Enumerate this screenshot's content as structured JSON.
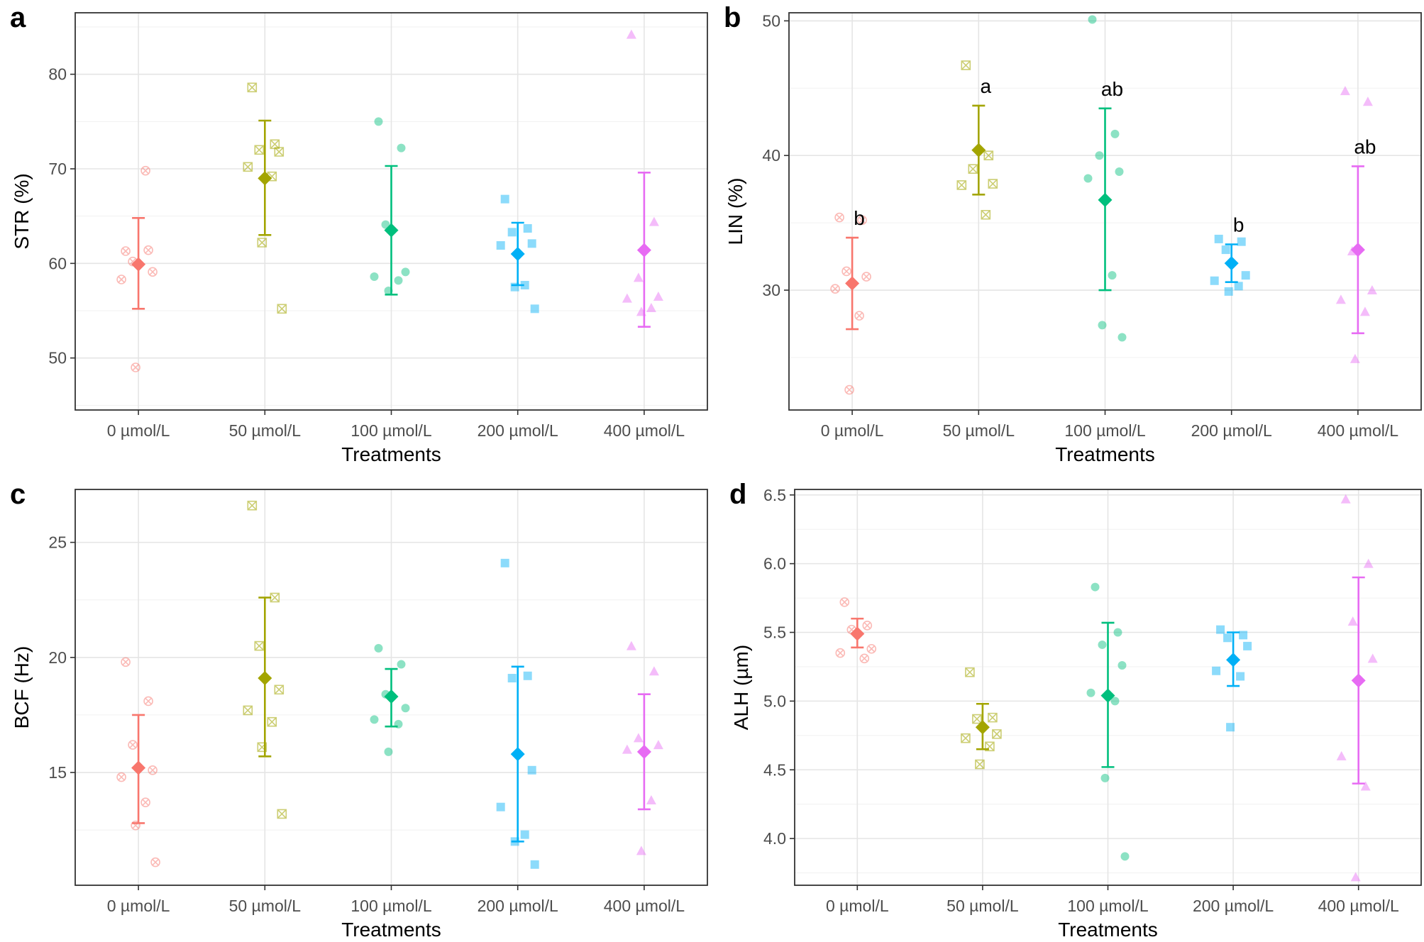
{
  "figure": {
    "colors": [
      "#f8766d",
      "#a3a500",
      "#00bf7d",
      "#00b0f6",
      "#e76bf3"
    ],
    "point_shapes": [
      "x-circle",
      "x-square",
      "circle",
      "square",
      "triangle"
    ]
  },
  "chart_data": [
    {
      "panel": "a",
      "type": "scatter",
      "title": "",
      "xlabel": "Treatments",
      "ylabel": "STR (%)",
      "ylim": [
        44.5,
        86.5
      ],
      "yticks": [
        50,
        60,
        70,
        80
      ],
      "ytick_labels": [
        "50",
        "60",
        "70",
        "80"
      ],
      "categories": [
        "0 µmol/L",
        "50 µmol/L",
        "100 µmol/L",
        "200 µmol/L",
        "400 µmol/L"
      ],
      "means": [
        59.9,
        69.0,
        63.5,
        61.0,
        61.4
      ],
      "error_low": [
        55.2,
        63.0,
        56.7,
        57.7,
        53.3
      ],
      "error_high": [
        64.8,
        75.1,
        70.3,
        64.3,
        69.6
      ],
      "significance_letters": [
        "",
        "",
        "",
        "",
        ""
      ],
      "points": [
        [
          61.3,
          61.4,
          60.2,
          59.1,
          58.3,
          69.8,
          49.0
        ],
        [
          78.6,
          72.6,
          72.0,
          71.8,
          70.2,
          69.2,
          62.2,
          55.2
        ],
        [
          75.0,
          72.2,
          64.1,
          59.1,
          58.6,
          58.2,
          57.1
        ],
        [
          66.8,
          63.7,
          63.3,
          62.1,
          61.9,
          57.7,
          57.5,
          55.2
        ],
        [
          84.2,
          64.4,
          58.5,
          56.5,
          56.3,
          55.3,
          54.9
        ]
      ]
    },
    {
      "panel": "b",
      "type": "scatter",
      "title": "",
      "xlabel": "Treatments",
      "ylabel": "LIN (%)",
      "ylim": [
        21.1,
        50.6
      ],
      "yticks": [
        30,
        40,
        50
      ],
      "ytick_labels": [
        "30",
        "40",
        "50"
      ],
      "categories": [
        "0 µmol/L",
        "50 µmol/L",
        "100 µmol/L",
        "200 µmol/L",
        "400 µmol/L"
      ],
      "means": [
        30.5,
        40.4,
        36.7,
        32.0,
        33.0
      ],
      "error_low": [
        27.1,
        37.1,
        30.0,
        30.6,
        26.8
      ],
      "error_high": [
        33.9,
        43.7,
        43.5,
        33.4,
        39.2
      ],
      "significance_letters": [
        "b",
        "a",
        "ab",
        "b",
        "ab"
      ],
      "points": [
        [
          35.4,
          35.2,
          31.4,
          31.0,
          30.1,
          28.1,
          22.6
        ],
        [
          46.7,
          40.0,
          39.0,
          37.9,
          37.8,
          35.6
        ],
        [
          50.1,
          41.6,
          40.0,
          38.8,
          38.3,
          31.1,
          27.4,
          26.5
        ],
        [
          33.8,
          33.6,
          33.0,
          31.1,
          30.7,
          30.3,
          29.9
        ],
        [
          44.8,
          44.0,
          32.9,
          30.0,
          29.3,
          28.4,
          24.9
        ]
      ]
    },
    {
      "panel": "c",
      "type": "scatter",
      "title": "",
      "xlabel": "Treatments",
      "ylabel": "BCF (Hz)",
      "ylim": [
        10.1,
        27.3
      ],
      "yticks": [
        15,
        20,
        25
      ],
      "ytick_labels": [
        "15",
        "20",
        "25"
      ],
      "categories": [
        "0 µmol/L",
        "50 µmol/L",
        "100 µmol/L",
        "200 µmol/L",
        "400 µmol/L"
      ],
      "means": [
        15.2,
        19.1,
        18.3,
        15.8,
        15.9
      ],
      "error_low": [
        12.8,
        15.7,
        17.0,
        12.0,
        13.4
      ],
      "error_high": [
        17.5,
        22.6,
        19.5,
        19.6,
        18.4
      ],
      "significance_letters": [
        "",
        "",
        "",
        "",
        ""
      ],
      "points": [
        [
          19.8,
          18.1,
          16.2,
          15.1,
          14.8,
          13.7,
          12.7,
          11.1
        ],
        [
          26.6,
          22.6,
          20.5,
          18.6,
          17.7,
          17.2,
          16.1,
          13.2
        ],
        [
          20.4,
          19.7,
          18.4,
          17.8,
          17.3,
          17.1,
          15.9
        ],
        [
          24.1,
          19.2,
          19.1,
          15.1,
          13.5,
          12.3,
          12.0,
          11.0
        ],
        [
          20.5,
          19.4,
          16.5,
          16.2,
          16.0,
          13.8,
          11.6
        ]
      ]
    },
    {
      "panel": "d",
      "type": "scatter",
      "title": "",
      "xlabel": "Treatments",
      "ylabel": "ALH (µm)",
      "ylim": [
        3.66,
        6.54
      ],
      "yticks": [
        4.0,
        4.5,
        5.0,
        5.5,
        6.0,
        6.5
      ],
      "ytick_labels": [
        "4.0",
        "4.5",
        "5.0",
        "5.5",
        "6.0",
        "6.5"
      ],
      "categories": [
        "0 µmol/L",
        "50 µmol/L",
        "100 µmol/L",
        "200 µmol/L",
        "400 µmol/L"
      ],
      "means": [
        5.49,
        4.81,
        5.04,
        5.3,
        5.15
      ],
      "error_low": [
        5.39,
        4.65,
        4.52,
        5.11,
        4.4
      ],
      "error_high": [
        5.6,
        4.98,
        5.57,
        5.5,
        5.9
      ],
      "significance_letters": [
        "",
        "",
        "",
        "",
        ""
      ],
      "points": [
        [
          5.72,
          5.55,
          5.52,
          5.38,
          5.35,
          5.31
        ],
        [
          5.21,
          4.88,
          4.87,
          4.76,
          4.73,
          4.67,
          4.54
        ],
        [
          5.83,
          5.5,
          5.41,
          5.26,
          5.06,
          5.0,
          4.44,
          3.87
        ],
        [
          5.52,
          5.48,
          5.46,
          5.4,
          5.22,
          5.18,
          4.81
        ],
        [
          6.47,
          6.0,
          5.58,
          5.31,
          4.6,
          4.38,
          3.72
        ]
      ]
    }
  ]
}
